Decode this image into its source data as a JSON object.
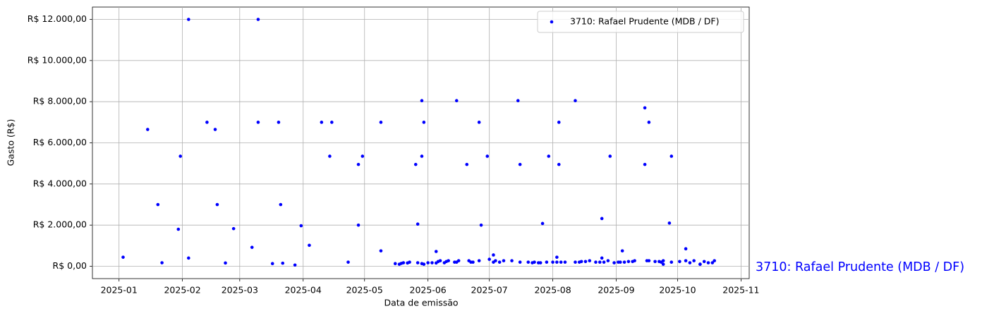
{
  "chart_data": {
    "type": "scatter",
    "xlabel": "Data de emissão",
    "ylabel": "Gasto (R$)",
    "annotation": "3710: Rafael Prudente (MDB / DF)",
    "legend": "upper right",
    "grid": true,
    "xlim": [
      "2024-12-19",
      "2025-11-05"
    ],
    "xticks": [
      {
        "value": "2025-01-01",
        "label": "2025-01"
      },
      {
        "value": "2025-02-01",
        "label": "2025-02"
      },
      {
        "value": "2025-03-01",
        "label": "2025-03"
      },
      {
        "value": "2025-04-01",
        "label": "2025-04"
      },
      {
        "value": "2025-05-01",
        "label": "2025-05"
      },
      {
        "value": "2025-06-01",
        "label": "2025-06"
      },
      {
        "value": "2025-07-01",
        "label": "2025-07"
      },
      {
        "value": "2025-08-01",
        "label": "2025-08"
      },
      {
        "value": "2025-09-01",
        "label": "2025-09"
      },
      {
        "value": "2025-10-01",
        "label": "2025-10"
      },
      {
        "value": "2025-11-01",
        "label": "2025-11"
      }
    ],
    "ylim": [
      -600,
      12600
    ],
    "yticks": [
      {
        "value": 0,
        "label": "R$ 0,00"
      },
      {
        "value": 2000,
        "label": "R$ 2.000,00"
      },
      {
        "value": 4000,
        "label": "R$ 4.000,00"
      },
      {
        "value": 6000,
        "label": "R$ 6.000,00"
      },
      {
        "value": 8000,
        "label": "R$ 8.000,00"
      },
      {
        "value": 10000,
        "label": "R$ 10.000,00"
      },
      {
        "value": 12000,
        "label": "R$ 12.000,00"
      }
    ],
    "series": [
      {
        "name": "3710: Rafael Prudente (MDB / DF)",
        "color": "#0000ff",
        "x": [
          "2025-01-03",
          "2025-01-15",
          "2025-01-20",
          "2025-01-22",
          "2025-01-30",
          "2025-01-31",
          "2025-02-04",
          "2025-02-04",
          "2025-02-13",
          "2025-02-17",
          "2025-02-18",
          "2025-02-22",
          "2025-02-26",
          "2025-03-07",
          "2025-03-10",
          "2025-03-10",
          "2025-03-17",
          "2025-03-20",
          "2025-03-21",
          "2025-03-22",
          "2025-03-28",
          "2025-03-31",
          "2025-04-04",
          "2025-04-10",
          "2025-04-14",
          "2025-04-15",
          "2025-04-23",
          "2025-04-28",
          "2025-04-28",
          "2025-04-30",
          "2025-05-09",
          "2025-05-09",
          "2025-05-16",
          "2025-05-18",
          "2025-05-19",
          "2025-05-20",
          "2025-05-22",
          "2025-05-23",
          "2025-05-26",
          "2025-05-27",
          "2025-05-27",
          "2025-05-29",
          "2025-05-29",
          "2025-05-29",
          "2025-05-30",
          "2025-05-30",
          "2025-06-01",
          "2025-06-03",
          "2025-06-05",
          "2025-06-05",
          "2025-06-06",
          "2025-06-07",
          "2025-06-09",
          "2025-06-10",
          "2025-06-11",
          "2025-06-14",
          "2025-06-15",
          "2025-06-15",
          "2025-06-16",
          "2025-06-20",
          "2025-06-21",
          "2025-06-22",
          "2025-06-23",
          "2025-06-26",
          "2025-06-26",
          "2025-06-27",
          "2025-06-30",
          "2025-07-01",
          "2025-07-03",
          "2025-07-03",
          "2025-07-04",
          "2025-07-06",
          "2025-07-08",
          "2025-07-12",
          "2025-07-15",
          "2025-07-16",
          "2025-07-16",
          "2025-07-20",
          "2025-07-22",
          "2025-07-23",
          "2025-07-25",
          "2025-07-26",
          "2025-07-27",
          "2025-07-29",
          "2025-07-30",
          "2025-08-01",
          "2025-08-03",
          "2025-08-03",
          "2025-08-04",
          "2025-08-04",
          "2025-08-05",
          "2025-08-07",
          "2025-08-12",
          "2025-08-12",
          "2025-08-14",
          "2025-08-15",
          "2025-08-17",
          "2025-08-19",
          "2025-08-22",
          "2025-08-24",
          "2025-08-25",
          "2025-08-25",
          "2025-08-26",
          "2025-08-28",
          "2025-08-29",
          "2025-08-31",
          "2025-09-02",
          "2025-09-03",
          "2025-09-04",
          "2025-09-05",
          "2025-09-07",
          "2025-09-09",
          "2025-09-10",
          "2025-09-15",
          "2025-09-15",
          "2025-09-16",
          "2025-09-17",
          "2025-09-17",
          "2025-09-20",
          "2025-09-22",
          "2025-09-23",
          "2025-09-24",
          "2025-09-24",
          "2025-09-27",
          "2025-09-28",
          "2025-09-28",
          "2025-10-02",
          "2025-10-05",
          "2025-10-05",
          "2025-10-07",
          "2025-10-09",
          "2025-10-12",
          "2025-10-12",
          "2025-10-14",
          "2025-10-16",
          "2025-10-18",
          "2025-10-19"
        ],
        "values": [
          440,
          6650,
          3000,
          170,
          1800,
          5350,
          12000,
          400,
          7000,
          6650,
          3000,
          160,
          1830,
          920,
          12000,
          7000,
          130,
          7000,
          3000,
          150,
          60,
          1970,
          1020,
          7000,
          5350,
          7000,
          200,
          4950,
          2000,
          5350,
          7000,
          750,
          130,
          100,
          140,
          170,
          160,
          200,
          4950,
          2050,
          170,
          8050,
          5350,
          130,
          100,
          7000,
          170,
          170,
          160,
          720,
          230,
          270,
          170,
          230,
          270,
          200,
          200,
          8050,
          270,
          4950,
          270,
          200,
          200,
          270,
          7000,
          2000,
          5350,
          340,
          550,
          200,
          270,
          200,
          270,
          270,
          8050,
          4950,
          200,
          200,
          170,
          200,
          170,
          170,
          2080,
          200,
          5350,
          200,
          200,
          440,
          7000,
          4950,
          200,
          200,
          8050,
          200,
          200,
          230,
          230,
          270,
          200,
          200,
          2320,
          400,
          200,
          270,
          5350,
          170,
          200,
          200,
          750,
          200,
          230,
          230,
          270,
          7700,
          4950,
          270,
          7000,
          270,
          230,
          230,
          200,
          100,
          270,
          2100,
          200,
          5350,
          230,
          850,
          270,
          170,
          270,
          100,
          100,
          230,
          170,
          170,
          270
        ]
      }
    ]
  }
}
